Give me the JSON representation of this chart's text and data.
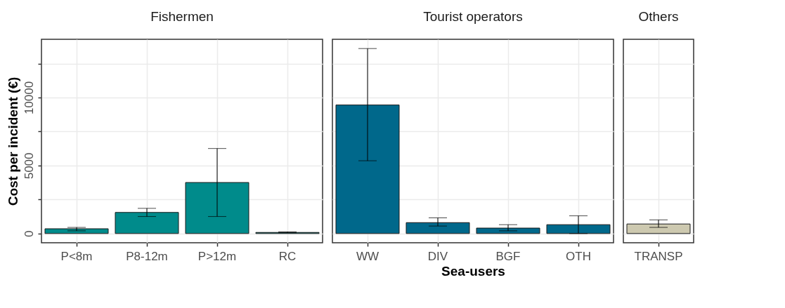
{
  "chart_data": [
    {
      "type": "bar",
      "title": "Fishermen",
      "ylabel": "Cost per incident (€)",
      "categories": [
        "P<8m",
        "P8-12m",
        "P>12m",
        "RC"
      ],
      "values": [
        350,
        1550,
        3750,
        80
      ],
      "errors": [
        [
          200,
          450
        ],
        [
          1250,
          1850
        ],
        [
          1250,
          6250
        ],
        [
          50,
          120
        ]
      ],
      "color": "#008b8b",
      "ylim": [
        -680,
        14280
      ],
      "yticks": [
        0,
        {
          "value": 2500,
          "label": null
        },
        5000,
        {
          "value": 7500,
          "label": null
        },
        10000,
        {
          "value": 12500,
          "label": null
        }
      ],
      "grid": true
    },
    {
      "type": "bar",
      "title": "Tourist operators",
      "xlabel": "Sea-users",
      "categories": [
        "WW",
        "DIV",
        "BGF",
        "OTH"
      ],
      "values": [
        9450,
        800,
        400,
        650
      ],
      "errors": [
        [
          5350,
          13600
        ],
        [
          550,
          1150
        ],
        [
          200,
          650
        ],
        [
          0,
          1300
        ]
      ],
      "color": "#00688b",
      "ylim": [
        -680,
        14280
      ],
      "yticks": [
        0,
        {
          "value": 2500,
          "label": null
        },
        5000,
        {
          "value": 7500,
          "label": null
        },
        10000,
        {
          "value": 12500,
          "label": null
        }
      ],
      "grid": true,
      "tick_labels": "x"
    },
    {
      "type": "bar",
      "title": "Others",
      "categories": [
        "TRANSP"
      ],
      "values": [
        700
      ],
      "errors": [
        [
          450,
          1000
        ]
      ],
      "color": "#cdc9b0",
      "ylim": [
        -680,
        14280
      ],
      "yticks": [
        0,
        {
          "value": 2500,
          "label": null
        },
        5000,
        {
          "value": 7500,
          "label": null
        },
        10000,
        {
          "value": 12500,
          "label": null
        }
      ],
      "grid": true,
      "tick_labels": "x"
    }
  ]
}
